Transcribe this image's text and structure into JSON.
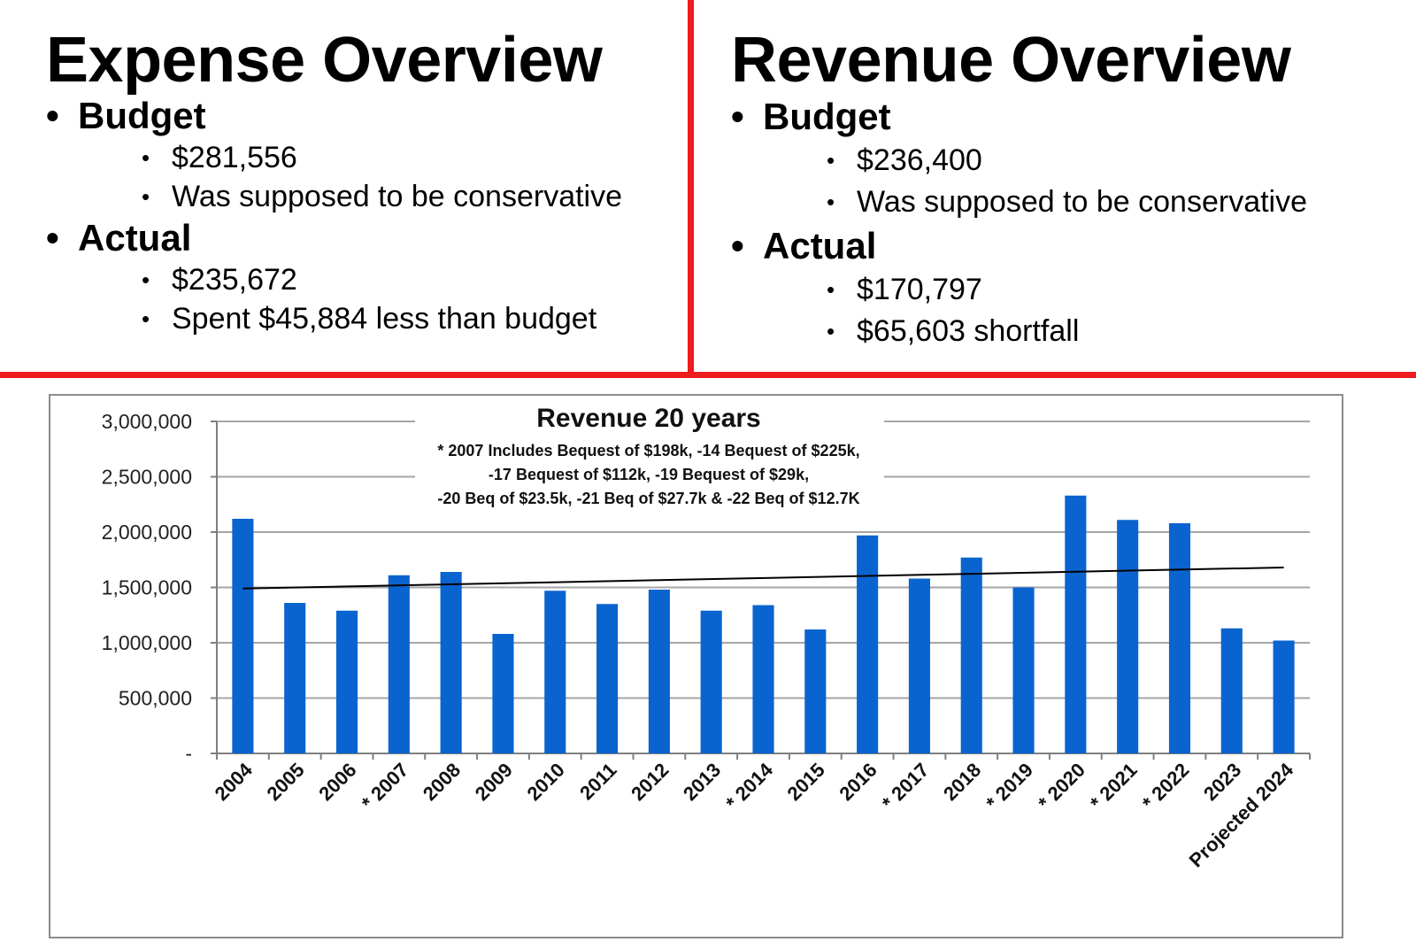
{
  "expense": {
    "title": "Expense Overview",
    "budget_label": "Budget",
    "budget_value": "$281,556",
    "budget_note": "Was supposed to be conservative",
    "actual_label": "Actual",
    "actual_value": "$235,672",
    "actual_note": "Spent $45,884 less than budget"
  },
  "revenue": {
    "title": "Revenue Overview",
    "budget_label": "Budget",
    "budget_value": "$236,400",
    "budget_note": "Was supposed to be conservative",
    "actual_label": "Actual",
    "actual_value": "$170,797",
    "actual_note": "$65,603 shortfall"
  },
  "colors": {
    "divider": "#ee1c1c",
    "bar": "#0a64cf",
    "grid": "#a6a6a6",
    "trend": "#000000"
  },
  "chart_data": {
    "type": "bar",
    "title": "Revenue 20 years",
    "notes": [
      "* 2007 Includes Bequest of $198k, -14 Bequest of $225k,",
      "-17 Bequest of $112k, -19 Bequest of $29k,",
      "-20 Beq of $23.5k, -21 Beq of $27.7k & -22 Beq of $12.7K"
    ],
    "categories": [
      "2004",
      "2005",
      "2006",
      "* 2007",
      "2008",
      "2009",
      "2010",
      "2011",
      "2012",
      "2013",
      "* 2014",
      "2015",
      "2016",
      "* 2017",
      "2018",
      "* 2019",
      "* 2020",
      "* 2021",
      "* 2022",
      "2023",
      "Projected 2024"
    ],
    "values": [
      2120000,
      1360000,
      1290000,
      1610000,
      1640000,
      1080000,
      1470000,
      1350000,
      1480000,
      1290000,
      1340000,
      1120000,
      1970000,
      1580000,
      1770000,
      1500000,
      2330000,
      2110000,
      2080000,
      1130000,
      1020000
    ],
    "ylim": [
      0,
      3000000
    ],
    "yticks": [
      0,
      500000,
      1000000,
      1500000,
      2000000,
      2500000,
      3000000
    ],
    "ytick_labels": [
      "-",
      "500,000",
      "1,000,000",
      "1,500,000",
      "2,000,000",
      "2,500,000",
      "3,000,000"
    ],
    "trendline": {
      "start": 1490000,
      "end": 1680000
    },
    "grid": true,
    "legend": "none"
  }
}
